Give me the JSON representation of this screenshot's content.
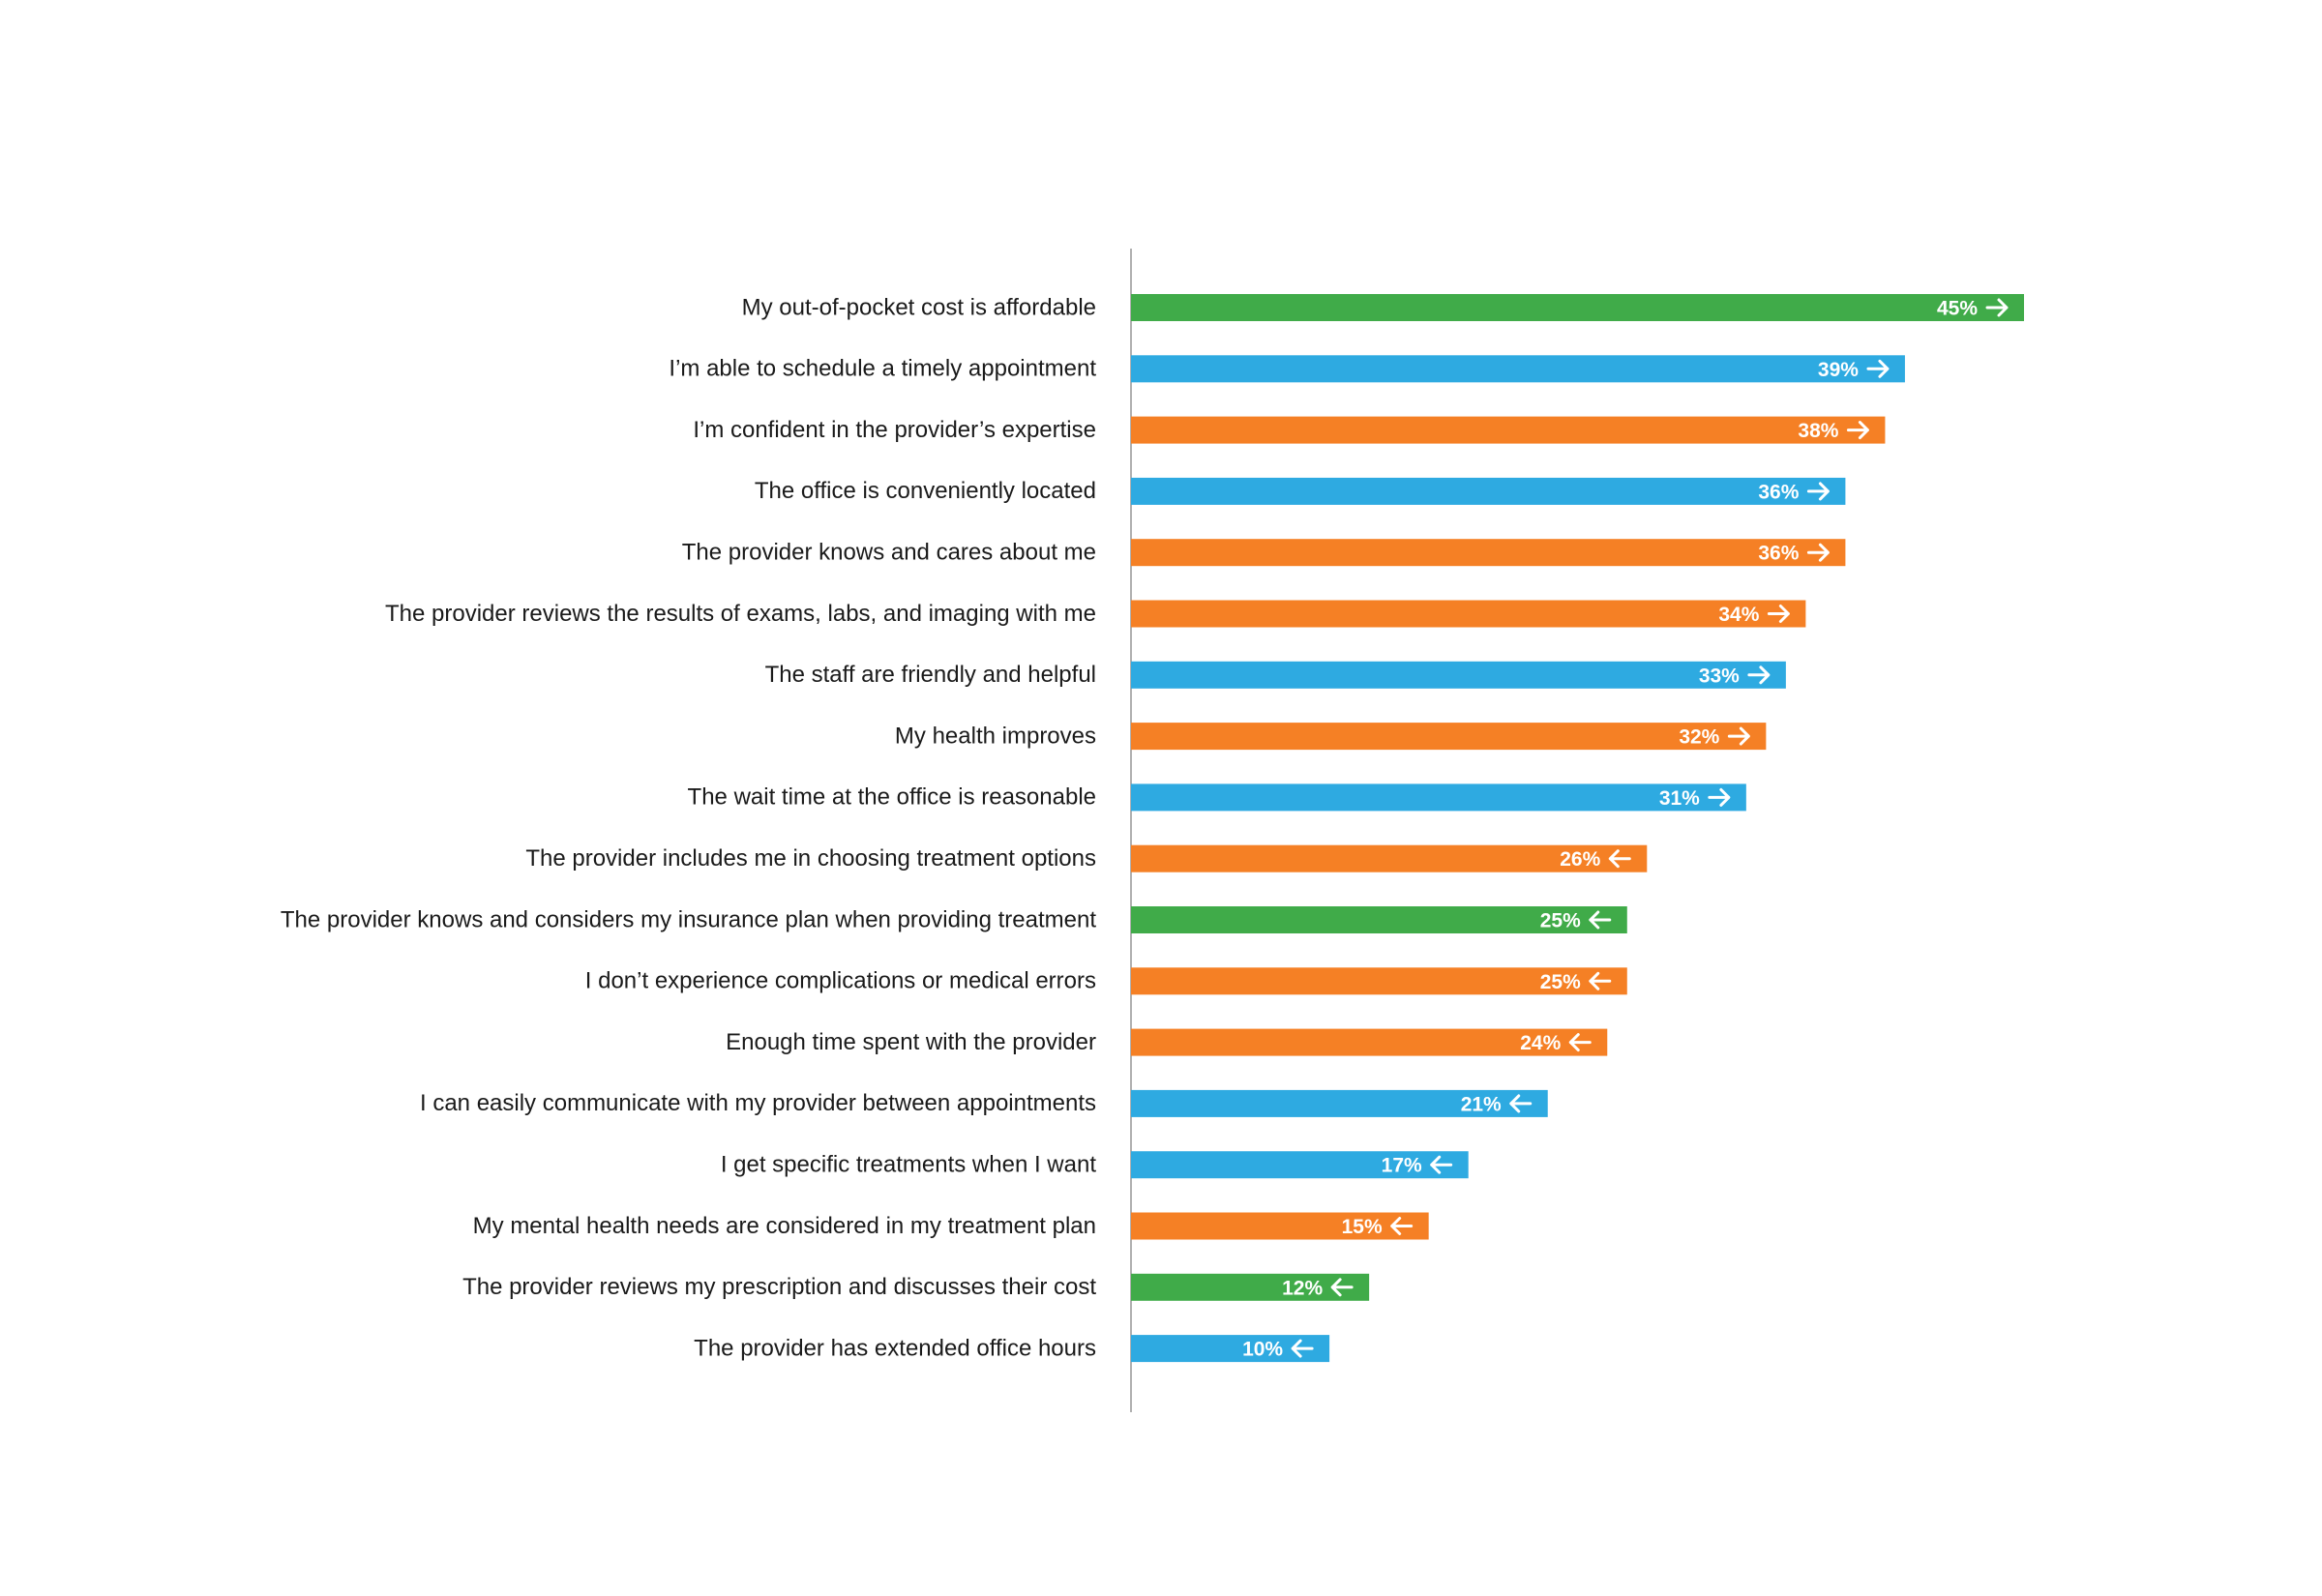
{
  "colors": {
    "green": "#40ab49",
    "blue": "#2eaae1",
    "orange": "#f58025",
    "axis": "#b0b0b0"
  },
  "chart_data": {
    "type": "bar",
    "orientation": "horizontal",
    "value_suffix": "%",
    "xlim": [
      0,
      45
    ],
    "grid": false,
    "legend": "none",
    "categories": [
      "My out-of-pocket cost is affordable",
      "I’m able to schedule a timely appointment",
      "I’m confident in the provider’s expertise",
      "The office is conveniently located",
      "The provider knows and cares about me",
      "The provider reviews the results of exams, labs, and imaging with me",
      "The staff are friendly and helpful",
      "My health improves",
      "The wait time at the office is reasonable",
      "The provider includes me in choosing treatment options",
      "The provider knows and considers my insurance plan when providing treatment",
      "I don’t experience complications or medical errors",
      "Enough time spent with the provider",
      "I can easily communicate with my provider between appointments",
      "I get specific treatments when I want",
      "My mental health needs are considered in my treatment plan",
      "The provider reviews my prescription and discusses their cost",
      "The provider has extended office hours"
    ],
    "values": [
      45,
      39,
      38,
      36,
      36,
      34,
      33,
      32,
      31,
      26,
      25,
      25,
      24,
      21,
      17,
      15,
      12,
      10
    ],
    "bar_colors": [
      "green",
      "blue",
      "orange",
      "blue",
      "orange",
      "orange",
      "blue",
      "orange",
      "blue",
      "orange",
      "green",
      "orange",
      "orange",
      "blue",
      "blue",
      "orange",
      "green",
      "blue"
    ],
    "arrows": [
      "right",
      "right",
      "right",
      "right",
      "right",
      "right",
      "right",
      "right",
      "right",
      "left",
      "left",
      "left",
      "left",
      "left",
      "left",
      "left",
      "left",
      "left"
    ]
  }
}
